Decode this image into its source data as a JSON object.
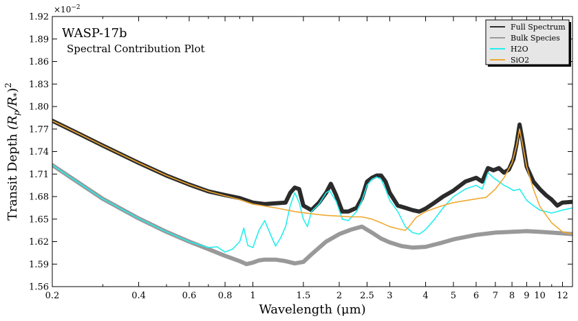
{
  "chart_data": {
    "type": "line",
    "title": "WASP-17b",
    "subtitle": "Spectral Contribution Plot",
    "xlabel": "Wavelength (μm)",
    "ylabel_main": "Transit Depth ",
    "ylabel_math": "(R",
    "ylabel_sub_p": "p",
    "ylabel_slash": "/R",
    "ylabel_sub_star": "*",
    "ylabel_close": ")",
    "ylabel_sup": "2",
    "offset_base": "×10",
    "offset_exp": "−2",
    "x_scale": "log",
    "xlim": [
      0.2,
      13.0
    ],
    "ylim": [
      1.56,
      1.92
    ],
    "x_ticks": [
      {
        "v": 0.2,
        "label": "0.2"
      },
      {
        "v": 0.4,
        "label": "0.4"
      },
      {
        "v": 0.6,
        "label": "0.6"
      },
      {
        "v": 0.8,
        "label": "0.8"
      },
      {
        "v": 1,
        "label": "1"
      },
      {
        "v": 1.5,
        "label": "1.5"
      },
      {
        "v": 2,
        "label": "2"
      },
      {
        "v": 2.5,
        "label": "2.5"
      },
      {
        "v": 3,
        "label": "3"
      },
      {
        "v": 4,
        "label": "4"
      },
      {
        "v": 5,
        "label": "5"
      },
      {
        "v": 6,
        "label": "6"
      },
      {
        "v": 7,
        "label": "7"
      },
      {
        "v": 8,
        "label": "8"
      },
      {
        "v": 9,
        "label": "9"
      },
      {
        "v": 10,
        "label": "10"
      },
      {
        "v": 12,
        "label": "12"
      }
    ],
    "y_ticks": [
      {
        "v": 1.56,
        "label": "1.56"
      },
      {
        "v": 1.59,
        "label": "1.59"
      },
      {
        "v": 1.62,
        "label": "1.62"
      },
      {
        "v": 1.65,
        "label": "1.65"
      },
      {
        "v": 1.68,
        "label": "1.68"
      },
      {
        "v": 1.71,
        "label": "1.71"
      },
      {
        "v": 1.74,
        "label": "1.74"
      },
      {
        "v": 1.77,
        "label": "1.77"
      },
      {
        "v": 1.8,
        "label": "1.80"
      },
      {
        "v": 1.83,
        "label": "1.83"
      },
      {
        "v": 1.86,
        "label": "1.86"
      },
      {
        "v": 1.89,
        "label": "1.89"
      },
      {
        "v": 1.92,
        "label": "1.92"
      }
    ],
    "grid": false,
    "legend_position": "top-right",
    "series": [
      {
        "name": "Full Spectrum",
        "color": "#2b2b2b",
        "x": [
          0.2,
          0.25,
          0.3,
          0.4,
          0.5,
          0.6,
          0.7,
          0.8,
          0.9,
          1.0,
          1.1,
          1.2,
          1.3,
          1.35,
          1.4,
          1.45,
          1.5,
          1.6,
          1.7,
          1.8,
          1.87,
          1.95,
          2.05,
          2.15,
          2.3,
          2.4,
          2.5,
          2.6,
          2.7,
          2.8,
          2.9,
          3.0,
          3.2,
          3.4,
          3.6,
          3.8,
          4.0,
          4.3,
          4.6,
          5.0,
          5.5,
          6.0,
          6.3,
          6.6,
          6.9,
          7.2,
          7.5,
          7.8,
          8.1,
          8.3,
          8.5,
          8.7,
          9.0,
          9.5,
          10.0,
          10.5,
          11.0,
          11.5,
          12.0,
          13.0
        ],
        "values": [
          1.781,
          1.763,
          1.748,
          1.725,
          1.708,
          1.696,
          1.687,
          1.682,
          1.678,
          1.672,
          1.67,
          1.671,
          1.672,
          1.685,
          1.692,
          1.69,
          1.668,
          1.662,
          1.672,
          1.685,
          1.697,
          1.682,
          1.66,
          1.66,
          1.665,
          1.678,
          1.7,
          1.705,
          1.708,
          1.708,
          1.7,
          1.685,
          1.668,
          1.665,
          1.662,
          1.66,
          1.664,
          1.672,
          1.68,
          1.688,
          1.7,
          1.705,
          1.7,
          1.718,
          1.715,
          1.718,
          1.712,
          1.716,
          1.73,
          1.75,
          1.776,
          1.755,
          1.72,
          1.7,
          1.69,
          1.682,
          1.676,
          1.668,
          1.672,
          1.673
        ]
      },
      {
        "name": "Bulk Species",
        "color": "#999999",
        "x": [
          0.2,
          0.3,
          0.4,
          0.5,
          0.6,
          0.7,
          0.8,
          0.9,
          0.95,
          1.0,
          1.05,
          1.1,
          1.2,
          1.3,
          1.4,
          1.5,
          1.6,
          1.8,
          2.0,
          2.2,
          2.4,
          2.6,
          2.8,
          3.0,
          3.3,
          3.6,
          4.0,
          4.5,
          5.0,
          6.0,
          7.0,
          8.0,
          9.0,
          10.0,
          11.0,
          12.0,
          13.0
        ],
        "values": [
          1.722,
          1.677,
          1.651,
          1.633,
          1.62,
          1.61,
          1.601,
          1.594,
          1.59,
          1.592,
          1.595,
          1.596,
          1.596,
          1.594,
          1.591,
          1.593,
          1.603,
          1.62,
          1.63,
          1.636,
          1.64,
          1.632,
          1.624,
          1.619,
          1.614,
          1.612,
          1.613,
          1.618,
          1.623,
          1.629,
          1.632,
          1.633,
          1.634,
          1.633,
          1.632,
          1.631,
          1.63
        ]
      },
      {
        "name": "H2O",
        "color": "#22eeee",
        "x": [
          0.2,
          0.3,
          0.4,
          0.5,
          0.6,
          0.7,
          0.75,
          0.8,
          0.85,
          0.9,
          0.93,
          0.96,
          1.0,
          1.05,
          1.1,
          1.15,
          1.2,
          1.25,
          1.3,
          1.35,
          1.4,
          1.45,
          1.5,
          1.55,
          1.6,
          1.7,
          1.8,
          1.85,
          1.95,
          2.05,
          2.15,
          2.3,
          2.4,
          2.5,
          2.6,
          2.7,
          2.8,
          2.9,
          3.0,
          3.2,
          3.4,
          3.6,
          3.8,
          4.0,
          4.3,
          4.6,
          5.0,
          5.5,
          6.0,
          6.3,
          6.6,
          6.9,
          7.2,
          7.5,
          7.8,
          8.1,
          8.5,
          9.0,
          9.5,
          10.0,
          10.5,
          11.0,
          12.0,
          13.0
        ],
        "values": [
          1.722,
          1.677,
          1.651,
          1.633,
          1.62,
          1.612,
          1.613,
          1.606,
          1.61,
          1.62,
          1.638,
          1.615,
          1.612,
          1.635,
          1.648,
          1.63,
          1.614,
          1.625,
          1.64,
          1.668,
          1.685,
          1.672,
          1.65,
          1.64,
          1.66,
          1.67,
          1.685,
          1.688,
          1.674,
          1.65,
          1.648,
          1.66,
          1.675,
          1.695,
          1.703,
          1.706,
          1.703,
          1.69,
          1.675,
          1.66,
          1.64,
          1.632,
          1.63,
          1.636,
          1.65,
          1.665,
          1.68,
          1.69,
          1.695,
          1.69,
          1.712,
          1.705,
          1.7,
          1.695,
          1.692,
          1.688,
          1.69,
          1.675,
          1.668,
          1.662,
          1.66,
          1.658,
          1.662,
          1.665
        ]
      },
      {
        "name": "SiO2",
        "color": "#f0a830",
        "x": [
          0.2,
          0.25,
          0.3,
          0.4,
          0.5,
          0.6,
          0.7,
          0.8,
          0.9,
          1.0,
          1.2,
          1.4,
          1.6,
          1.8,
          2.0,
          2.2,
          2.4,
          2.6,
          2.8,
          3.0,
          3.2,
          3.4,
          3.5,
          3.7,
          4.0,
          4.5,
          5.0,
          6.0,
          6.5,
          7.0,
          7.5,
          8.0,
          8.3,
          8.5,
          8.7,
          9.0,
          9.5,
          10.0,
          11.0,
          12.0,
          13.0
        ],
        "values": [
          1.781,
          1.763,
          1.748,
          1.725,
          1.708,
          1.696,
          1.687,
          1.681,
          1.676,
          1.67,
          1.665,
          1.66,
          1.657,
          1.655,
          1.654,
          1.653,
          1.653,
          1.65,
          1.645,
          1.64,
          1.637,
          1.635,
          1.64,
          1.652,
          1.66,
          1.667,
          1.672,
          1.677,
          1.679,
          1.69,
          1.705,
          1.725,
          1.748,
          1.77,
          1.75,
          1.72,
          1.69,
          1.667,
          1.645,
          1.633,
          1.63
        ]
      }
    ]
  }
}
